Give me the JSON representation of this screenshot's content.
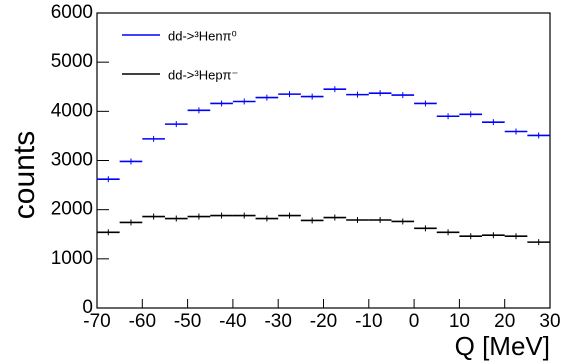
{
  "chart_data": {
    "type": "histogram",
    "x_label": "Q [MeV]",
    "y_label": "counts",
    "bins": [
      -70,
      -65,
      -60,
      -55,
      -50,
      -45,
      -40,
      -35,
      -30,
      -25,
      -20,
      -15,
      -10,
      -5,
      0,
      5,
      10,
      15,
      20,
      25,
      30
    ],
    "series": [
      {
        "name": "dd->³Henπ⁰",
        "color": "#0000ff",
        "values": [
          2620,
          2980,
          3440,
          3740,
          4020,
          4160,
          4200,
          4280,
          4350,
          4300,
          4450,
          4340,
          4370,
          4330,
          4160,
          3900,
          3940,
          3780,
          3590,
          3510
        ]
      },
      {
        "name": "dd->³Hepπ⁻",
        "color": "#000000",
        "values": [
          1540,
          1740,
          1860,
          1820,
          1860,
          1880,
          1880,
          1820,
          1880,
          1780,
          1840,
          1790,
          1790,
          1760,
          1620,
          1540,
          1460,
          1480,
          1460,
          1340
        ]
      }
    ],
    "xlim": [
      -70,
      30
    ],
    "xticks": [
      -70,
      -60,
      -50,
      -40,
      -30,
      -20,
      -10,
      0,
      10,
      20,
      30
    ],
    "ylim": [
      0,
      6000
    ],
    "yticks": [
      0,
      1000,
      2000,
      3000,
      4000,
      5000,
      6000
    ],
    "legend": "top-left"
  }
}
